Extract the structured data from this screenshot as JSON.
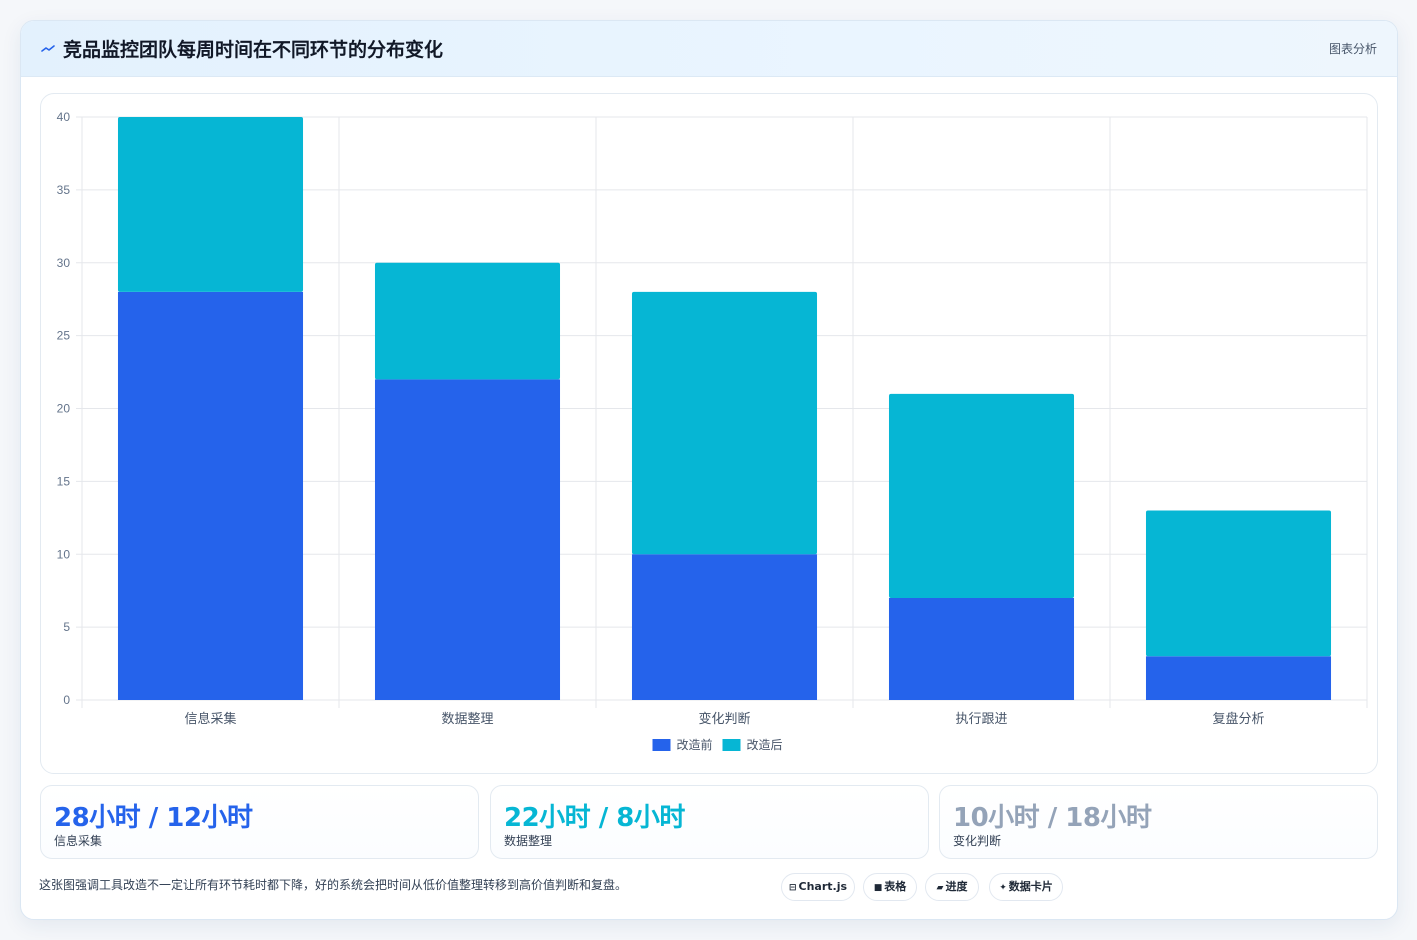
{
  "header": {
    "title": "竞品监控团队每周时间在不同环节的分布变化",
    "tag": "图表分析",
    "icon": "trend-icon"
  },
  "chart_data": {
    "type": "bar",
    "stacked": true,
    "categories": [
      "信息采集",
      "数据整理",
      "变化判断",
      "执行跟进",
      "复盘分析"
    ],
    "series": [
      {
        "name": "改造前",
        "values": [
          28,
          22,
          10,
          7,
          3
        ],
        "color": "#2563eb"
      },
      {
        "name": "改造后",
        "values": [
          12,
          8,
          18,
          14,
          10
        ],
        "color": "#06b6d4"
      }
    ],
    "yticks": [
      "0",
      "5",
      "10",
      "15",
      "20",
      "25",
      "30",
      "35",
      "40"
    ],
    "ylim": [
      0,
      40
    ],
    "grid": true,
    "legend_position": "bottom"
  },
  "stats": [
    {
      "value": "28小时 / 12小时",
      "label": "信息采集",
      "color": "#2563eb"
    },
    {
      "value": "22小时 / 8小时",
      "label": "数据整理",
      "color": "#06b6d4"
    },
    {
      "value": "10小时 / 18小时",
      "label": "变化判断",
      "color": "#94a3b8"
    }
  ],
  "footer": {
    "note": "这张图强调工具改造不一定让所有环节耗时都下降，好的系统会把时间从低价值整理转移到高价值判断和复盘。"
  },
  "chips": [
    {
      "label": "Chart.js",
      "icon": "⊟"
    },
    {
      "label": "表格",
      "icon": "■"
    },
    {
      "label": "进度",
      "icon": "▰"
    },
    {
      "label": "数据卡片",
      "icon": "✦"
    }
  ]
}
